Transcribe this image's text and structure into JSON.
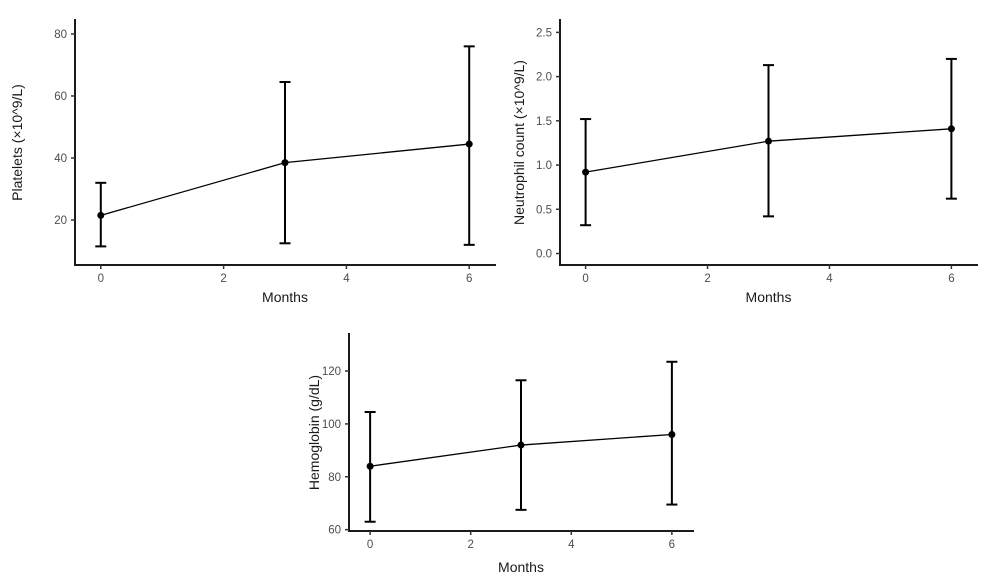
{
  "theme": {
    "background_color": "#ffffff",
    "axis_color": "#1a1a1a",
    "tick_color": "#333333",
    "tick_label_color": "#4d4d4d",
    "axis_title_color": "#1a1a1a",
    "line_color": "#000000",
    "point_color": "#000000",
    "error_bar_color": "#000000"
  },
  "chart_data": [
    {
      "type": "line",
      "name": "platelets",
      "title": "",
      "xlabel": "Months",
      "ylabel": "Platelets (×10^9/L)",
      "x": [
        0,
        3,
        6
      ],
      "series": [
        {
          "name": "Platelets mean",
          "values": [
            21.5,
            38.5,
            44.5
          ],
          "lower": [
            11.5,
            12.5,
            12
          ],
          "upper": [
            32,
            64.5,
            76
          ]
        }
      ],
      "xlim": [
        -0.42,
        6.42
      ],
      "ylim": [
        5.5,
        84.5
      ],
      "xtick_values": [
        0,
        2,
        4,
        6
      ],
      "xtick_labels": [
        "0",
        "2",
        "4",
        "6"
      ],
      "ytick_values": [
        20,
        40,
        60,
        80
      ],
      "ytick_labels": [
        "20",
        "40",
        "60",
        "80"
      ],
      "grid": false,
      "legend": "none",
      "marker": "circle",
      "error_bars": true
    },
    {
      "type": "line",
      "name": "neutrophil-count",
      "title": "",
      "xlabel": "Months",
      "ylabel": "Neutrophil count (×10^9/L)",
      "x": [
        0,
        3,
        6
      ],
      "series": [
        {
          "name": "Neutrophil count mean",
          "values": [
            0.92,
            1.27,
            1.41
          ],
          "lower": [
            0.32,
            0.42,
            0.62
          ],
          "upper": [
            1.52,
            2.13,
            2.2
          ]
        }
      ],
      "xlim": [
        -0.42,
        6.42
      ],
      "ylim": [
        -0.13,
        2.64
      ],
      "xtick_values": [
        0,
        2,
        4,
        6
      ],
      "xtick_labels": [
        "0",
        "2",
        "4",
        "6"
      ],
      "ytick_values": [
        0,
        0.5,
        1,
        1.5,
        2,
        2.5
      ],
      "ytick_labels": [
        "0.0",
        "0.5",
        "1.0",
        "1.5",
        "2.0",
        "2.5"
      ],
      "grid": false,
      "legend": "none",
      "marker": "circle",
      "error_bars": true
    },
    {
      "type": "line",
      "name": "hemoglobin",
      "title": "",
      "xlabel": "Months",
      "ylabel": "Hemoglobin (g/dL)",
      "x": [
        0,
        3,
        6
      ],
      "series": [
        {
          "name": "Hemoglobin mean",
          "values": [
            84,
            92,
            96
          ],
          "lower": [
            63,
            67.5,
            69.5
          ],
          "upper": [
            104.5,
            116.5,
            123.5
          ]
        }
      ],
      "xlim": [
        -0.42,
        6.42
      ],
      "ylim": [
        59.5,
        134
      ],
      "xtick_values": [
        0,
        2,
        4,
        6
      ],
      "xtick_labels": [
        "0",
        "2",
        "4",
        "6"
      ],
      "ytick_values": [
        60,
        80,
        100,
        120
      ],
      "ytick_labels": [
        "60",
        "80",
        "100",
        "120"
      ],
      "grid": false,
      "legend": "none",
      "marker": "circle",
      "error_bars": true
    }
  ]
}
